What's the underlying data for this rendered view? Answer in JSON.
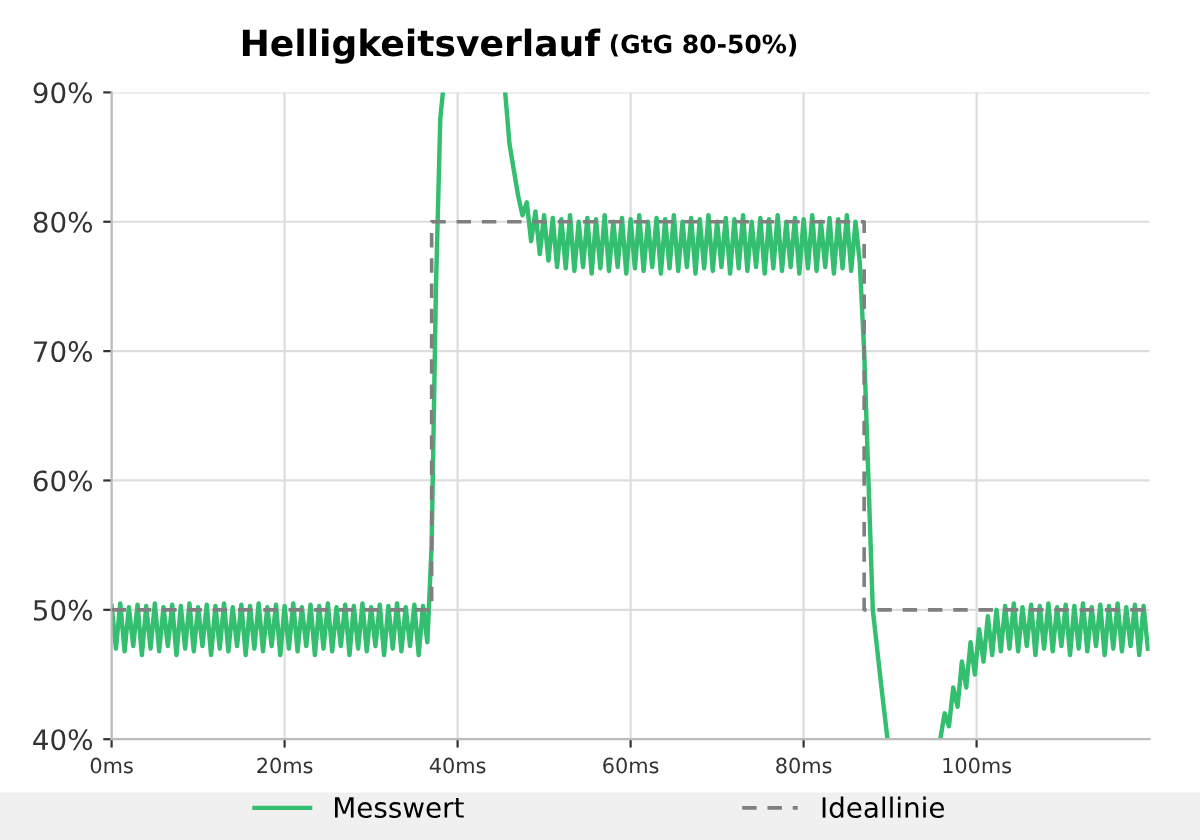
{
  "chart_data": {
    "type": "line",
    "title": "Helligkeitsverlauf",
    "subtitle": "(GtG 80-50%)",
    "series": [
      {
        "name": "Messwert",
        "color": "#33bf6f",
        "line_style": "solid",
        "x": [
          0,
          0.5,
          1,
          1.5,
          2,
          2.5,
          3,
          3.5,
          4,
          4.5,
          5,
          5.5,
          6,
          6.5,
          7,
          7.5,
          8,
          8.5,
          9,
          9.5,
          10,
          10.5,
          11,
          11.5,
          12,
          12.5,
          13,
          13.5,
          14,
          14.5,
          15,
          15.5,
          16,
          16.5,
          17,
          17.5,
          18,
          18.5,
          19,
          19.5,
          20,
          20.5,
          21,
          21.5,
          22,
          22.5,
          23,
          23.5,
          24,
          24.5,
          25,
          25.5,
          26,
          26.5,
          27,
          27.5,
          28,
          28.5,
          29,
          29.5,
          30,
          30.5,
          31,
          31.5,
          32,
          32.5,
          33,
          33.5,
          34,
          34.5,
          35,
          35.5,
          36,
          36.5,
          37,
          37.5,
          38,
          38.3,
          42,
          45.5,
          46,
          46.5,
          47,
          47.5,
          48,
          48.5,
          49,
          49.5,
          50,
          50.5,
          51,
          51.5,
          52,
          52.5,
          53,
          53.5,
          54,
          54.5,
          55,
          55.5,
          56,
          56.5,
          57,
          57.5,
          58,
          58.5,
          59,
          59.5,
          60,
          60.5,
          61,
          61.5,
          62,
          62.5,
          63,
          63.5,
          64,
          64.5,
          65,
          65.5,
          66,
          66.5,
          67,
          67.5,
          68,
          68.5,
          69,
          69.5,
          70,
          70.5,
          71,
          71.5,
          72,
          72.5,
          73,
          73.5,
          74,
          74.5,
          75,
          75.5,
          76,
          76.5,
          77,
          77.5,
          78,
          78.5,
          79,
          79.5,
          80,
          80.5,
          81,
          81.5,
          82,
          82.5,
          83,
          83.5,
          84,
          84.5,
          85,
          85.5,
          86,
          86.5,
          87,
          87.5,
          88,
          89,
          89.7,
          93,
          95.8,
          96.3,
          96.8,
          97.3,
          97.8,
          98.3,
          98.8,
          99.3,
          99.8,
          100.3,
          100.8,
          101.3,
          101.8,
          102.3,
          102.8,
          103.3,
          103.8,
          104.3,
          104.8,
          105.3,
          105.8,
          106.3,
          106.8,
          107.3,
          107.8,
          108.3,
          108.8,
          109.3,
          109.8,
          110.3,
          110.8,
          111.3,
          111.8,
          112.3,
          112.8,
          113.3,
          113.8,
          114.3,
          114.8,
          115.3,
          115.8,
          116.3,
          116.8,
          117.3,
          117.8,
          118.3,
          118.8,
          119.3,
          119.8
        ],
        "values": [
          50.3,
          47,
          50.5,
          46.8,
          50.2,
          47.2,
          50.4,
          46.5,
          50.3,
          47,
          50.5,
          46.8,
          50.2,
          47.2,
          50.4,
          46.5,
          50.3,
          47,
          50.5,
          46.8,
          50.2,
          47.2,
          50.4,
          46.5,
          50.3,
          47,
          50.5,
          46.8,
          50.2,
          47.2,
          50.4,
          46.5,
          50.3,
          47,
          50.5,
          46.8,
          50.2,
          47.2,
          50.4,
          46.5,
          50.3,
          47,
          50.5,
          46.8,
          50.2,
          47.2,
          50.4,
          46.5,
          50.3,
          47,
          50.5,
          46.8,
          50.2,
          47.2,
          50.4,
          46.5,
          50.3,
          47,
          50.5,
          46.8,
          50.2,
          47.2,
          50.4,
          46.5,
          50.3,
          47,
          50.5,
          46.8,
          50.2,
          47.2,
          50.4,
          46.5,
          50.3,
          47.5,
          55,
          75,
          88,
          90,
          null,
          90,
          86,
          84,
          82,
          80.5,
          81.5,
          78.5,
          80.8,
          77.5,
          80.5,
          77,
          80.3,
          76.5,
          80.2,
          76.4,
          80.5,
          76.2,
          80,
          76.5,
          80.3,
          76,
          80.2,
          76.4,
          80.5,
          76.2,
          80,
          76.5,
          80.3,
          76,
          80.2,
          76.4,
          80.5,
          76.2,
          80,
          76.5,
          80.3,
          76,
          80.2,
          76.4,
          80.5,
          76.2,
          80,
          76.5,
          80.3,
          76,
          80.2,
          76.4,
          80.5,
          76.2,
          80,
          76.5,
          80.3,
          76,
          80.2,
          76.4,
          80.5,
          76.2,
          80,
          76.5,
          80.3,
          76,
          80.2,
          76.4,
          80.5,
          76.2,
          80,
          76.5,
          80.3,
          76,
          80.2,
          76.4,
          80.5,
          76.2,
          80,
          76.5,
          80.3,
          76,
          80.2,
          76.4,
          80.5,
          76.2,
          80,
          76.8,
          70,
          60,
          50,
          44,
          40,
          null,
          40,
          42,
          41,
          44,
          42.5,
          46,
          44,
          47.5,
          45,
          48.5,
          46,
          49.5,
          46.5,
          50,
          46.8,
          50.3,
          47,
          50.5,
          46.8,
          50.2,
          47.2,
          50.4,
          46.5,
          50.3,
          47,
          50.5,
          46.8,
          50.2,
          47.2,
          50.4,
          46.5,
          50.3,
          47,
          50.5,
          46.8,
          50.2,
          47.2,
          50.4,
          46.5,
          50.3,
          47,
          50.5,
          46.8,
          50.2,
          47.2,
          50.4,
          46.5,
          50.3,
          47
        ]
      },
      {
        "name": "Ideallinie",
        "color": "#7f7f7f",
        "line_style": "dashed",
        "x": [
          0,
          37,
          37,
          87,
          87,
          120
        ],
        "values": [
          50,
          50,
          80,
          80,
          50,
          50
        ]
      }
    ],
    "xlim": [
      0,
      120
    ],
    "xticks": [
      {
        "value": 0,
        "label": "0ms"
      },
      {
        "value": 20,
        "label": "20ms"
      },
      {
        "value": 40,
        "label": "40ms"
      },
      {
        "value": 60,
        "label": "60ms"
      },
      {
        "value": 80,
        "label": "80ms"
      },
      {
        "value": 100,
        "label": "100ms"
      }
    ],
    "ylim": [
      40,
      90
    ],
    "yticks": [
      {
        "value": 40,
        "label": "40%"
      },
      {
        "value": 50,
        "label": "50%"
      },
      {
        "value": 60,
        "label": "60%"
      },
      {
        "value": 70,
        "label": "70%"
      },
      {
        "value": 80,
        "label": "80%"
      },
      {
        "value": 90,
        "label": "90%"
      }
    ],
    "grid": true,
    "legend": "bottom",
    "marker": "none"
  }
}
